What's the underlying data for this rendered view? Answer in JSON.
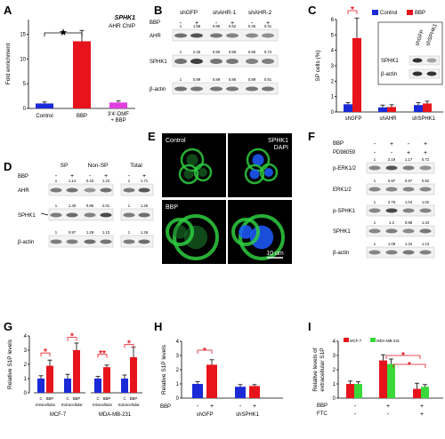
{
  "panels": [
    "A",
    "B",
    "C",
    "D",
    "E",
    "F",
    "G",
    "H",
    "I"
  ],
  "A": {
    "gene": "SPHK1",
    "assay": "AHR ChIP",
    "ylabel": "Fold enrichment",
    "yticks": [
      "0",
      "5",
      "10",
      "15"
    ],
    "categories": [
      "Control",
      "BBP",
      "3'4'-DMF\n+ BBP"
    ],
    "values": [
      1.0,
      13.6,
      1.2
    ],
    "errors": [
      0.3,
      2.2,
      0.3
    ],
    "colors": [
      "#1a2ad6",
      "#e8141c",
      "#e040e0"
    ],
    "sig": "★"
  },
  "B": {
    "groups": [
      "shGFP",
      "shAHR-1",
      "shAHR-2"
    ],
    "bbp_label": "BBP",
    "bbp_signs": [
      "-",
      "+",
      "-",
      "+",
      "-",
      "+"
    ],
    "blots": [
      {
        "name": "AHR",
        "values": [
          "1",
          "1.58",
          "0.85",
          "0.62",
          "0.46",
          "0.41"
        ]
      },
      {
        "name": "SPHK1",
        "values": [
          "1",
          "2.26",
          "0.90",
          "0.86",
          "0.65",
          "0.72"
        ]
      },
      {
        "name": "β-actin",
        "values": [
          "1",
          "0.89",
          "0.89",
          "0.86",
          "0.89",
          "0.91"
        ]
      }
    ]
  },
  "C": {
    "ylabel": "SP cells (%)",
    "yticks": [
      "0",
      "1",
      "2",
      "3",
      "4",
      "5",
      "6"
    ],
    "categories": [
      "shGFP",
      "shAHR",
      "shSPHK1"
    ],
    "legend": [
      "Control",
      "BBP"
    ],
    "control": [
      0.5,
      0.3,
      0.45
    ],
    "bbp": [
      4.8,
      0.32,
      0.55
    ],
    "control_err": [
      0.1,
      0.15,
      0.15
    ],
    "bbp_err": [
      1.3,
      0.15,
      0.15
    ],
    "sig": "*",
    "inset": {
      "lanes": [
        "shGFP",
        "shSPHK1"
      ],
      "blots": [
        "SPHK1",
        "β-actin"
      ]
    }
  },
  "D": {
    "groups": [
      "SP",
      "Non-SP",
      "Total"
    ],
    "bbp_label": "BBP",
    "bbp_signs": [
      "-",
      "+",
      "-",
      "+",
      "-",
      "+"
    ],
    "blots": [
      {
        "name": "AHR",
        "values": [
          "1",
          "1.14",
          "0.43",
          "1.23",
          "1",
          "1.71"
        ]
      },
      {
        "name": "SPHK1",
        "values": [
          "1",
          "1.30",
          "0.85",
          "2.01",
          "1",
          "1.26"
        ]
      },
      {
        "name": "β-actin",
        "values": [
          "1",
          "0.97",
          "1.29",
          "1.13",
          "1",
          "1.26"
        ]
      }
    ]
  },
  "E": {
    "labels": [
      "Control",
      "BBP"
    ],
    "channel": "SPHK1",
    "nuclear": "DAPI",
    "scale": "10 um"
  },
  "F": {
    "treatments": [
      {
        "name": "BBP",
        "signs": [
          "-",
          "+",
          "-",
          "+"
        ]
      },
      {
        "name": "PD98059",
        "signs": [
          "-",
          "-",
          "+",
          "+"
        ]
      }
    ],
    "blots": [
      {
        "name": "p-ERK1/2",
        "values": [
          "1",
          "2.19",
          "1.17",
          "0.72"
        ]
      },
      {
        "name": "ERK1/2",
        "values": [
          "1",
          "0.97",
          "0.97",
          "0.92"
        ]
      },
      {
        "name": "p-SPHK1",
        "values": [
          "1",
          "2.76",
          "1.04",
          "1.02"
        ]
      },
      {
        "name": "SPHK1",
        "values": [
          "1",
          "1.2",
          "0.88",
          "1.34"
        ]
      },
      {
        "name": "β-actin",
        "values": [
          "1",
          "1.09",
          "1.34",
          "1.13"
        ]
      }
    ]
  },
  "G": {
    "ylabel": "Relative S1P levels",
    "yticks": [
      "0",
      "1",
      "2",
      "3",
      "4"
    ],
    "cells": [
      {
        "name": "MCF-7",
        "groups": [
          {
            "label": "Intracellular",
            "values": [
              1.0,
              1.9
            ],
            "errors": [
              0.2,
              0.4
            ],
            "sig": "*"
          },
          {
            "label": "Extracellular",
            "values": [
              1.0,
              3.0
            ],
            "errors": [
              0.3,
              0.5
            ],
            "sig": "*"
          }
        ]
      },
      {
        "name": "MDA-MB-231",
        "groups": [
          {
            "label": "Intracellular",
            "values": [
              1.0,
              1.8
            ],
            "errors": [
              0.15,
              0.15
            ],
            "sig": "**"
          },
          {
            "label": "Extracellular",
            "values": [
              1.0,
              2.5
            ],
            "errors": [
              0.25,
              0.7
            ],
            "sig": "*"
          }
        ]
      }
    ],
    "bar_labels": [
      "C",
      "BBP"
    ]
  },
  "H": {
    "ylabel": "Relative S1P levels",
    "yticks": [
      "0",
      "1",
      "2",
      "3",
      "4"
    ],
    "bbp_label": "BBP",
    "bbp_signs": [
      "-",
      "+",
      "-",
      "+"
    ],
    "groups": [
      "shGFP",
      "shSPHK1"
    ],
    "values": [
      1.0,
      2.35,
      0.8,
      0.85
    ],
    "errors": [
      0.15,
      0.35,
      0.15,
      0.1
    ],
    "sig": "*"
  },
  "I": {
    "ylabel": "Relative levels of\nextracellular S1P",
    "yticks": [
      "0",
      "1",
      "2",
      "3",
      "4"
    ],
    "legend": [
      "MCF-7",
      "MDA-MB-231"
    ],
    "treatments": [
      {
        "name": "BBP",
        "signs": [
          "-",
          "+",
          "+"
        ]
      },
      {
        "name": "FTC",
        "signs": [
          "-",
          "-",
          "+"
        ]
      }
    ],
    "mcf7": [
      1.0,
      2.65,
      0.65
    ],
    "mda": [
      1.0,
      2.4,
      0.8
    ],
    "mcf7_err": [
      0.2,
      0.4,
      0.4
    ],
    "mda_err": [
      0.15,
      0.35,
      0.15
    ],
    "sig": "*"
  },
  "colors": {
    "control": "#1a2ad6",
    "bbp": "#e8141c",
    "dmf": "#e040e0",
    "mda": "#3ad93a"
  }
}
